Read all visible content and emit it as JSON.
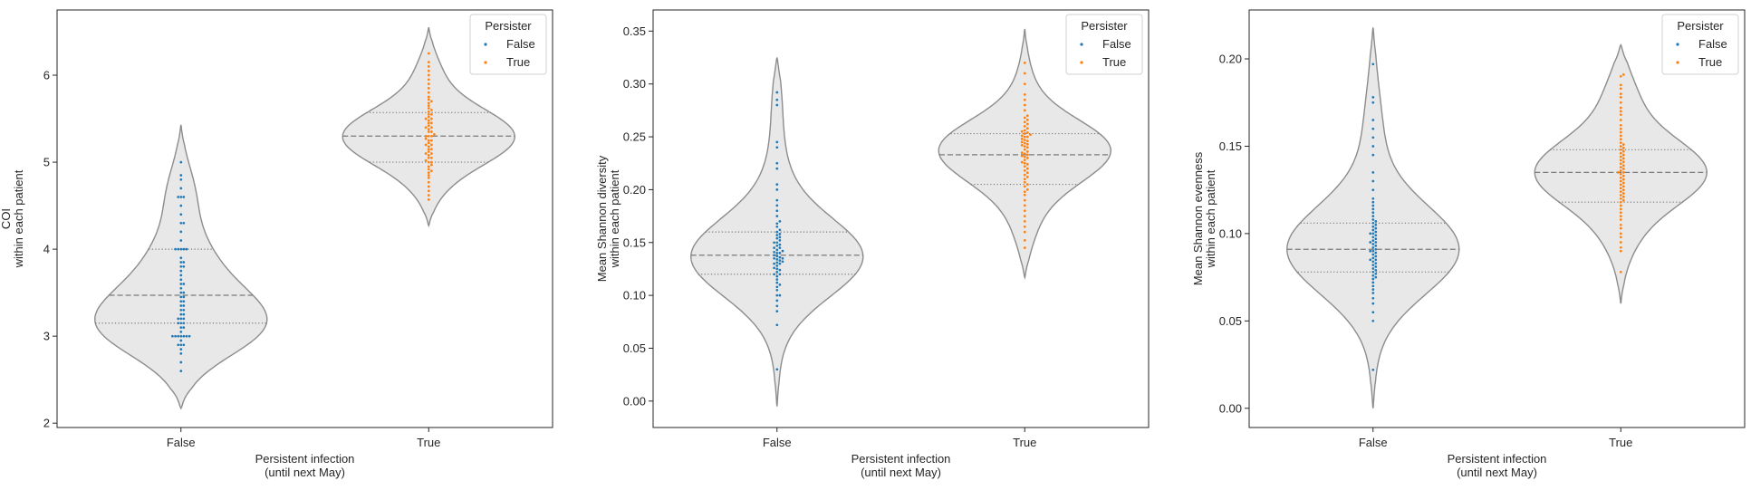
{
  "chart_data": [
    {
      "type": "violin",
      "xlabel": "Persistent infection\n(until next May)",
      "ylabel": "COI\nwithin each patient",
      "categories": [
        "False",
        "True"
      ],
      "ylim": [
        1.95,
        6.75
      ],
      "yticks": [
        2,
        3,
        4,
        5,
        6
      ],
      "ytick_labels": [
        "2",
        "3",
        "4",
        "5",
        "6"
      ],
      "legend": {
        "title": "Persister",
        "entries": [
          "False",
          "True"
        ],
        "placement": "top-right"
      },
      "series": [
        {
          "name": "False",
          "color": "#1f77b4",
          "kde": {
            "min": 2.17,
            "max": 5.43,
            "mode": 3.2,
            "q1": 3.15,
            "median": 3.47,
            "q3": 4.0
          },
          "points": [
            2.6,
            2.7,
            2.8,
            2.85,
            2.9,
            2.9,
            2.9,
            2.95,
            3.0,
            3.0,
            3.0,
            3.0,
            3.0,
            3.0,
            3.0,
            3.05,
            3.1,
            3.1,
            3.15,
            3.15,
            3.15,
            3.2,
            3.2,
            3.2,
            3.25,
            3.25,
            3.3,
            3.3,
            3.35,
            3.35,
            3.4,
            3.4,
            3.45,
            3.45,
            3.5,
            3.5,
            3.55,
            3.6,
            3.6,
            3.65,
            3.7,
            3.75,
            3.8,
            3.8,
            3.85,
            3.85,
            3.9,
            4.0,
            4.0,
            4.0,
            4.0,
            4.0,
            4.1,
            4.2,
            4.3,
            4.3,
            4.4,
            4.5,
            4.6,
            4.6,
            4.6,
            4.7,
            4.8,
            4.85,
            5.0
          ]
        },
        {
          "name": "True",
          "color": "#ff7f0e",
          "kde": {
            "min": 4.27,
            "max": 6.55,
            "mode": 5.3,
            "q1": 5.0,
            "median": 5.3,
            "q3": 5.57
          },
          "points": [
            4.57,
            4.62,
            4.67,
            4.72,
            4.77,
            4.82,
            4.85,
            4.88,
            4.9,
            4.92,
            4.95,
            4.97,
            5.0,
            5.0,
            5.02,
            5.05,
            5.05,
            5.08,
            5.1,
            5.1,
            5.12,
            5.15,
            5.15,
            5.18,
            5.2,
            5.2,
            5.22,
            5.25,
            5.25,
            5.27,
            5.3,
            5.3,
            5.3,
            5.32,
            5.35,
            5.35,
            5.38,
            5.4,
            5.4,
            5.42,
            5.45,
            5.45,
            5.48,
            5.5,
            5.5,
            5.52,
            5.55,
            5.55,
            5.58,
            5.6,
            5.62,
            5.65,
            5.68,
            5.7,
            5.72,
            5.75,
            5.8,
            5.85,
            5.9,
            5.95,
            6.0,
            6.05,
            6.1,
            6.15,
            6.25
          ]
        }
      ]
    },
    {
      "type": "violin",
      "xlabel": "Persistent infection\n(until next May)",
      "ylabel": "Mean Shannon diversity\nwithin each patient",
      "categories": [
        "False",
        "True"
      ],
      "ylim": [
        -0.025,
        0.37
      ],
      "yticks": [
        0,
        0.05,
        0.1,
        0.15,
        0.2,
        0.25,
        0.3,
        0.35
      ],
      "ytick_labels": [
        "0.00",
        "0.05",
        "0.10",
        "0.15",
        "0.20",
        "0.25",
        "0.30",
        "0.35"
      ],
      "legend": {
        "title": "Persister",
        "entries": [
          "False",
          "True"
        ],
        "placement": "top-right"
      },
      "series": [
        {
          "name": "False",
          "color": "#1f77b4",
          "kde": {
            "min": -0.005,
            "max": 0.325,
            "mode": 0.135,
            "q1": 0.12,
            "median": 0.138,
            "q3": 0.16
          },
          "points": [
            0.03,
            0.072,
            0.085,
            0.09,
            0.095,
            0.1,
            0.1,
            0.105,
            0.108,
            0.11,
            0.112,
            0.115,
            0.118,
            0.12,
            0.12,
            0.122,
            0.124,
            0.125,
            0.126,
            0.128,
            0.13,
            0.13,
            0.131,
            0.132,
            0.133,
            0.134,
            0.135,
            0.135,
            0.136,
            0.137,
            0.138,
            0.14,
            0.14,
            0.141,
            0.142,
            0.143,
            0.145,
            0.145,
            0.147,
            0.148,
            0.15,
            0.15,
            0.152,
            0.154,
            0.155,
            0.157,
            0.158,
            0.16,
            0.162,
            0.165,
            0.168,
            0.17,
            0.175,
            0.18,
            0.185,
            0.19,
            0.2,
            0.205,
            0.22,
            0.225,
            0.24,
            0.245,
            0.28,
            0.285,
            0.292
          ]
        },
        {
          "name": "True",
          "color": "#ff7f0e",
          "kde": {
            "min": 0.117,
            "max": 0.352,
            "mode": 0.233,
            "q1": 0.205,
            "median": 0.233,
            "q3": 0.253
          },
          "points": [
            0.145,
            0.152,
            0.16,
            0.165,
            0.17,
            0.175,
            0.18,
            0.185,
            0.19,
            0.195,
            0.198,
            0.2,
            0.203,
            0.205,
            0.207,
            0.21,
            0.212,
            0.214,
            0.216,
            0.218,
            0.22,
            0.222,
            0.224,
            0.225,
            0.226,
            0.228,
            0.23,
            0.231,
            0.232,
            0.233,
            0.234,
            0.235,
            0.236,
            0.238,
            0.24,
            0.241,
            0.242,
            0.243,
            0.244,
            0.245,
            0.246,
            0.247,
            0.248,
            0.25,
            0.25,
            0.251,
            0.252,
            0.253,
            0.254,
            0.255,
            0.256,
            0.258,
            0.26,
            0.262,
            0.264,
            0.266,
            0.268,
            0.27,
            0.275,
            0.28,
            0.285,
            0.29,
            0.3,
            0.31,
            0.32
          ]
        }
      ]
    },
    {
      "type": "violin",
      "xlabel": "Persistent infection\n(until next May)",
      "ylabel": "Mean Shannon evenness\nwithin each patient",
      "categories": [
        "False",
        "True"
      ],
      "ylim": [
        -0.011,
        0.228
      ],
      "yticks": [
        0,
        0.05,
        0.1,
        0.15,
        0.2
      ],
      "ytick_labels": [
        "0.00",
        "0.05",
        "0.10",
        "0.15",
        "0.20"
      ],
      "legend": {
        "title": "Persister",
        "entries": [
          "False",
          "True"
        ],
        "placement": "top-right"
      },
      "series": [
        {
          "name": "False",
          "color": "#1f77b4",
          "kde": {
            "min": 0.0,
            "max": 0.218,
            "mode": 0.09,
            "q1": 0.078,
            "median": 0.091,
            "q3": 0.106
          },
          "points": [
            0.022,
            0.05,
            0.055,
            0.06,
            0.063,
            0.066,
            0.068,
            0.07,
            0.072,
            0.074,
            0.075,
            0.076,
            0.077,
            0.078,
            0.079,
            0.08,
            0.081,
            0.082,
            0.083,
            0.084,
            0.085,
            0.085,
            0.086,
            0.087,
            0.088,
            0.089,
            0.09,
            0.09,
            0.091,
            0.092,
            0.093,
            0.094,
            0.095,
            0.095,
            0.096,
            0.097,
            0.098,
            0.099,
            0.1,
            0.1,
            0.101,
            0.102,
            0.103,
            0.104,
            0.105,
            0.106,
            0.107,
            0.108,
            0.11,
            0.112,
            0.114,
            0.116,
            0.118,
            0.12,
            0.125,
            0.13,
            0.135,
            0.145,
            0.15,
            0.155,
            0.16,
            0.165,
            0.175,
            0.178,
            0.197
          ]
        },
        {
          "name": "True",
          "color": "#ff7f0e",
          "kde": {
            "min": 0.06,
            "max": 0.208,
            "mode": 0.135,
            "q1": 0.118,
            "median": 0.135,
            "q3": 0.148
          },
          "points": [
            0.078,
            0.09,
            0.092,
            0.095,
            0.098,
            0.1,
            0.103,
            0.105,
            0.108,
            0.11,
            0.112,
            0.114,
            0.116,
            0.118,
            0.119,
            0.12,
            0.121,
            0.122,
            0.123,
            0.124,
            0.125,
            0.126,
            0.127,
            0.128,
            0.129,
            0.13,
            0.131,
            0.132,
            0.133,
            0.134,
            0.135,
            0.135,
            0.136,
            0.137,
            0.138,
            0.139,
            0.14,
            0.141,
            0.142,
            0.143,
            0.144,
            0.145,
            0.146,
            0.147,
            0.148,
            0.149,
            0.15,
            0.151,
            0.152,
            0.154,
            0.156,
            0.158,
            0.16,
            0.162,
            0.165,
            0.168,
            0.17,
            0.172,
            0.175,
            0.178,
            0.18,
            0.183,
            0.185,
            0.19,
            0.191
          ]
        }
      ]
    }
  ]
}
